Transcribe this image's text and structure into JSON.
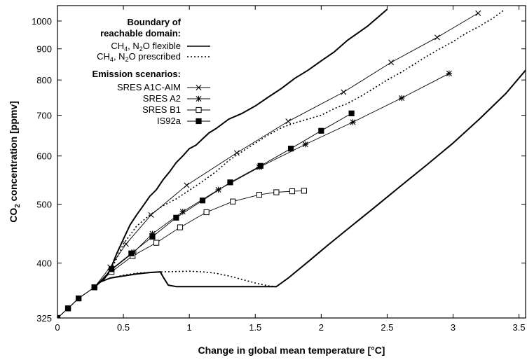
{
  "chart_data": {
    "type": "line",
    "xlabel": "Change in global mean temperature [°C]",
    "ylabel_main": "CO",
    "ylabel_sub": "2",
    "ylabel_rest": " concentration  [ppmv]",
    "y_scale": "log",
    "xlim": [
      0,
      3.55
    ],
    "ylim": [
      325,
      1060
    ],
    "x_ticks": [
      "0",
      "0.5",
      "1",
      "1.5",
      "2",
      "2.5",
      "3",
      "3.5"
    ],
    "x_tick_values": [
      0,
      0.5,
      1,
      1.5,
      2,
      2.5,
      3,
      3.5
    ],
    "y_ticks": [
      "325",
      "400",
      "500",
      "600",
      "700",
      "800",
      "900",
      "1000"
    ],
    "y_tick_values": [
      325,
      400,
      500,
      600,
      700,
      800,
      900,
      1000
    ],
    "grid": false,
    "legend": {
      "placement": "top-left",
      "boundary_title_line1": "Boundary of",
      "boundary_title_line2": "reachable domain:",
      "boundary_entries": [
        {
          "pre": "CH",
          "sub1": "4",
          "mid": ", N",
          "sub2": "2",
          "post": "O flexible",
          "style": "solid"
        },
        {
          "pre": "CH",
          "sub1": "4",
          "mid": ", N",
          "sub2": "2",
          "post": "O prescribed",
          "style": "dotted"
        }
      ],
      "scenario_title": "Emission scenarios:",
      "scenario_entries": [
        {
          "label": "SRES A1C-AIM",
          "marker": "x"
        },
        {
          "label": "SRES A2",
          "marker": "star"
        },
        {
          "label": "SRES B1",
          "marker": "open-square"
        },
        {
          "label": "IS92a",
          "marker": "filled-square"
        }
      ]
    },
    "boundaries": [
      {
        "name": "CH4, N2O flexible",
        "style": "solid",
        "upper": [
          [
            0.28,
            365
          ],
          [
            0.36,
            378
          ],
          [
            0.4,
            390
          ],
          [
            0.45,
            415
          ],
          [
            0.5,
            438
          ],
          [
            0.55,
            462
          ],
          [
            0.6,
            480
          ],
          [
            0.65,
            497
          ],
          [
            0.7,
            515
          ],
          [
            0.75,
            528
          ],
          [
            0.8,
            548
          ],
          [
            0.85,
            565
          ],
          [
            0.9,
            585
          ],
          [
            0.95,
            600
          ],
          [
            1.0,
            617
          ],
          [
            1.05,
            625
          ],
          [
            1.1,
            640
          ],
          [
            1.15,
            655
          ],
          [
            1.2,
            665
          ],
          [
            1.3,
            690
          ],
          [
            1.4,
            705
          ],
          [
            1.5,
            725
          ],
          [
            1.6,
            750
          ],
          [
            1.7,
            775
          ],
          [
            1.8,
            805
          ],
          [
            1.9,
            830
          ],
          [
            2.0,
            860
          ],
          [
            2.1,
            890
          ],
          [
            2.2,
            930
          ],
          [
            2.35,
            980
          ],
          [
            2.5,
            1045
          ]
        ],
        "lower": [
          [
            0.28,
            365
          ],
          [
            0.32,
            372
          ],
          [
            0.4,
            378
          ],
          [
            0.5,
            381
          ],
          [
            0.6,
            384
          ],
          [
            0.7,
            386
          ],
          [
            0.78,
            387
          ],
          [
            0.8,
            380
          ],
          [
            0.84,
            368
          ],
          [
            0.9,
            366
          ],
          [
            1.66,
            366
          ],
          [
            1.75,
            378
          ],
          [
            1.9,
            402
          ],
          [
            2.05,
            428
          ],
          [
            2.2,
            455
          ],
          [
            2.4,
            493
          ],
          [
            2.6,
            535
          ],
          [
            2.8,
            580
          ],
          [
            3.0,
            630
          ],
          [
            3.2,
            690
          ],
          [
            3.4,
            760
          ],
          [
            3.55,
            830
          ],
          [
            3.65,
            900
          ]
        ]
      },
      {
        "name": "CH4, N2O prescribed",
        "style": "dotted",
        "upper": [
          [
            0.28,
            365
          ],
          [
            0.36,
            378
          ],
          [
            0.42,
            395
          ],
          [
            0.5,
            430
          ],
          [
            0.6,
            460
          ],
          [
            0.7,
            480
          ],
          [
            0.8,
            497
          ],
          [
            0.9,
            510
          ],
          [
            1.0,
            527
          ],
          [
            1.1,
            545
          ],
          [
            1.2,
            565
          ],
          [
            1.3,
            590
          ],
          [
            1.4,
            610
          ],
          [
            1.5,
            630
          ],
          [
            1.6,
            650
          ],
          [
            1.7,
            668
          ],
          [
            1.8,
            680
          ],
          [
            1.9,
            690
          ],
          [
            2.0,
            700
          ],
          [
            2.1,
            718
          ],
          [
            2.2,
            732
          ],
          [
            2.3,
            752
          ],
          [
            2.4,
            775
          ],
          [
            2.5,
            800
          ],
          [
            2.6,
            822
          ],
          [
            2.7,
            848
          ],
          [
            2.8,
            875
          ],
          [
            2.9,
            900
          ],
          [
            3.0,
            925
          ],
          [
            3.1,
            955
          ],
          [
            3.2,
            980
          ],
          [
            3.3,
            1010
          ],
          [
            3.38,
            1040
          ]
        ],
        "lower": [
          [
            0.28,
            365
          ],
          [
            0.32,
            372
          ],
          [
            0.4,
            378
          ],
          [
            0.5,
            382
          ],
          [
            0.6,
            385
          ],
          [
            0.8,
            387
          ],
          [
            1.0,
            388
          ],
          [
            1.1,
            387
          ],
          [
            1.2,
            385
          ],
          [
            1.3,
            381
          ],
          [
            1.4,
            376
          ],
          [
            1.5,
            371
          ],
          [
            1.6,
            367
          ],
          [
            1.66,
            366
          ]
        ]
      }
    ],
    "series": [
      {
        "name": "SRES A1C-AIM",
        "marker": "x",
        "points": [
          [
            0,
            325
          ],
          [
            0.08,
            337
          ],
          [
            0.16,
            350
          ],
          [
            0.28,
            365
          ],
          [
            0.4,
            394
          ],
          [
            0.52,
            430
          ],
          [
            0.71,
            480
          ],
          [
            0.98,
            537
          ],
          [
            1.36,
            607
          ],
          [
            1.75,
            684
          ],
          [
            2.17,
            764
          ],
          [
            2.53,
            855
          ],
          [
            2.88,
            940
          ],
          [
            3.19,
            1030
          ]
        ]
      },
      {
        "name": "SRES A2",
        "marker": "star",
        "points": [
          [
            0,
            325
          ],
          [
            0.08,
            337
          ],
          [
            0.16,
            350
          ],
          [
            0.28,
            365
          ],
          [
            0.41,
            390
          ],
          [
            0.58,
            417
          ],
          [
            0.72,
            447
          ],
          [
            0.95,
            486
          ],
          [
            1.22,
            528
          ],
          [
            1.53,
            575
          ],
          [
            1.88,
            627
          ],
          [
            2.24,
            682
          ],
          [
            2.61,
            747
          ],
          [
            2.97,
            820
          ]
        ]
      },
      {
        "name": "SRES B1",
        "marker": "open-square",
        "points": [
          [
            0,
            325
          ],
          [
            0.08,
            337
          ],
          [
            0.16,
            350
          ],
          [
            0.28,
            365
          ],
          [
            0.41,
            387
          ],
          [
            0.57,
            411
          ],
          [
            0.75,
            432
          ],
          [
            0.93,
            458
          ],
          [
            1.13,
            485
          ],
          [
            1.33,
            505
          ],
          [
            1.53,
            518
          ],
          [
            1.66,
            523
          ],
          [
            1.78,
            525
          ],
          [
            1.87,
            526
          ]
        ]
      },
      {
        "name": "IS92a",
        "marker": "filled-square",
        "points": [
          [
            0,
            325
          ],
          [
            0.08,
            337
          ],
          [
            0.16,
            350
          ],
          [
            0.28,
            365
          ],
          [
            0.41,
            391
          ],
          [
            0.56,
            415
          ],
          [
            0.72,
            442
          ],
          [
            0.9,
            475
          ],
          [
            1.1,
            507
          ],
          [
            1.31,
            543
          ],
          [
            1.54,
            578
          ],
          [
            1.77,
            617
          ],
          [
            2.0,
            660
          ],
          [
            2.23,
            705
          ]
        ]
      }
    ]
  }
}
